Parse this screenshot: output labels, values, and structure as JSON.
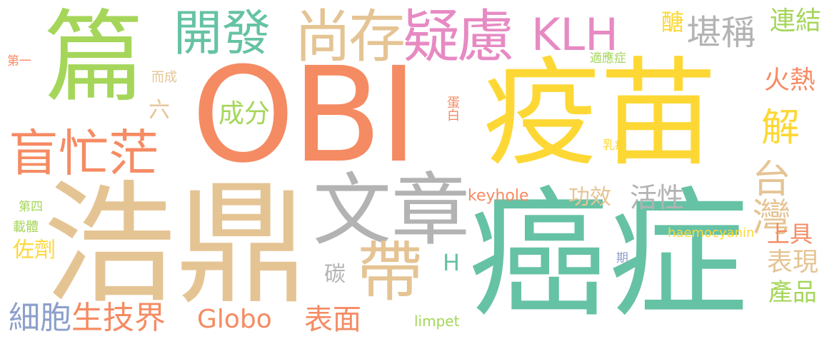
{
  "colors": {
    "orange": "#f58b63",
    "yellow": "#fdd835",
    "green": "#a5d65a",
    "teal": "#66c2a5",
    "tan": "#e5c494",
    "pink": "#e78ac3",
    "gray": "#b3b3b3",
    "blue": "#8da0cb"
  },
  "words": {
    "obi": "OBI",
    "vaccine": "疫苗",
    "cancer": "癌症",
    "haoding": "浩鼎",
    "article": "文章",
    "pian": "篇",
    "mangmang": "盲忙茫",
    "develop": "開發",
    "doubt": "尚存疑慮",
    "klh": "KLH",
    "kancheng": "堪稱",
    "dai": "帶",
    "taiwan": "台灣",
    "jie": "解",
    "huore": "火熱",
    "ingredient": "成分",
    "gongxiao": "功效",
    "activity": "活性",
    "keyhole": "keyhole",
    "haemocyanin": "haemocyanin",
    "shangju": "上具",
    "biaoxian": "表現",
    "products": "產品",
    "limpet": "limpet",
    "globo": "Globo",
    "biotech": "生技界",
    "surface": "表面",
    "cells": "細胞",
    "adjuvant": "佐劑",
    "carrier": "載體",
    "fourth": "第四",
    "first": "第一",
    "ercheng": "而成",
    "liu": "六",
    "lianjie": "連結",
    "mei": "醣",
    "shiyingzheng": "適應症",
    "protein": "蛋白",
    "breastcancer": "乳癌",
    "period": "期",
    "carbon": "碳",
    "h": "H"
  }
}
